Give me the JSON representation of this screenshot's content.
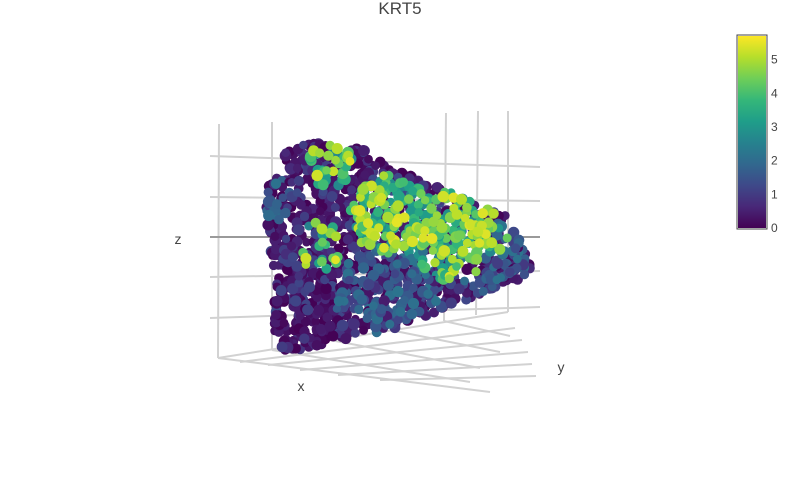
{
  "chart_data": {
    "type": "scatter3d",
    "title": "KRT5",
    "xlabel": "x",
    "ylabel": "y",
    "zlabel": "z",
    "colorscale": "viridis",
    "colorscale_stops": [
      "#440154",
      "#482878",
      "#3e4989",
      "#31688e",
      "#26828e",
      "#1f9e89",
      "#35b779",
      "#6ece58",
      "#b5de2b",
      "#fde725"
    ],
    "color_range": [
      0,
      5.7
    ],
    "colorbar_ticks": [
      "0",
      "1",
      "2",
      "3",
      "4",
      "5"
    ],
    "grid": true,
    "legend": "none",
    "colorbar_position": "right"
  }
}
